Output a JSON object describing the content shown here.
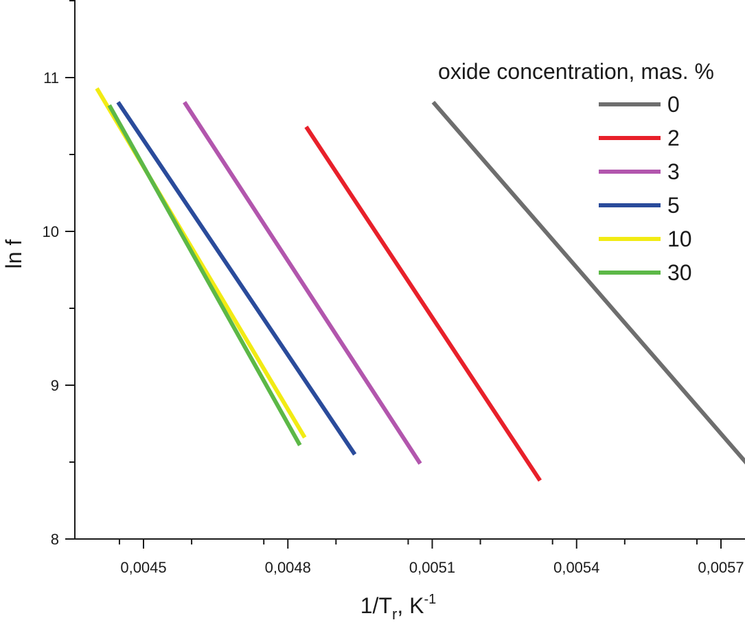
{
  "chart_data": {
    "type": "line",
    "title": "",
    "xlabel_main": "1/T",
    "xlabel_sub": "r",
    "xlabel_unit": ", K",
    "xlabel_exp": "-1",
    "ylabel": "ln f",
    "xlim": [
      0.0043,
      0.0059
    ],
    "ylim": [
      8,
      11.5
    ],
    "xticks": [
      0.0045,
      0.0048,
      0.0051,
      0.0054,
      0.0057
    ],
    "xtick_labels": [
      "0,0045",
      "0,0048",
      "0,0051",
      "0,0054",
      "0,0057"
    ],
    "yticks": [
      8,
      9,
      10,
      11
    ],
    "ytick_labels": [
      "8",
      "9",
      "10",
      "11"
    ],
    "legend_title": "oxide concentration, mas. %",
    "legend_position": "top-right",
    "series": [
      {
        "name": "0",
        "color": "#6e6e6e",
        "x": [
          0.005102,
          0.005754
        ],
        "y": [
          10.84,
          8.49
        ]
      },
      {
        "name": "2",
        "color": "#e8202a",
        "x": [
          0.004838,
          0.005324
        ],
        "y": [
          10.68,
          8.38
        ]
      },
      {
        "name": "3",
        "color": "#b256ad",
        "x": [
          0.004585,
          0.005075
        ],
        "y": [
          10.84,
          8.49
        ]
      },
      {
        "name": "5",
        "color": "#2a4b9b",
        "x": [
          0.004447,
          0.004939
        ],
        "y": [
          10.84,
          8.55
        ]
      },
      {
        "name": "10",
        "color": "#f2eb14",
        "x": [
          0.004403,
          0.004835
        ],
        "y": [
          10.93,
          8.66
        ]
      },
      {
        "name": "30",
        "color": "#5cb847",
        "x": [
          0.004429,
          0.004825
        ],
        "y": [
          10.82,
          8.61
        ]
      }
    ]
  }
}
